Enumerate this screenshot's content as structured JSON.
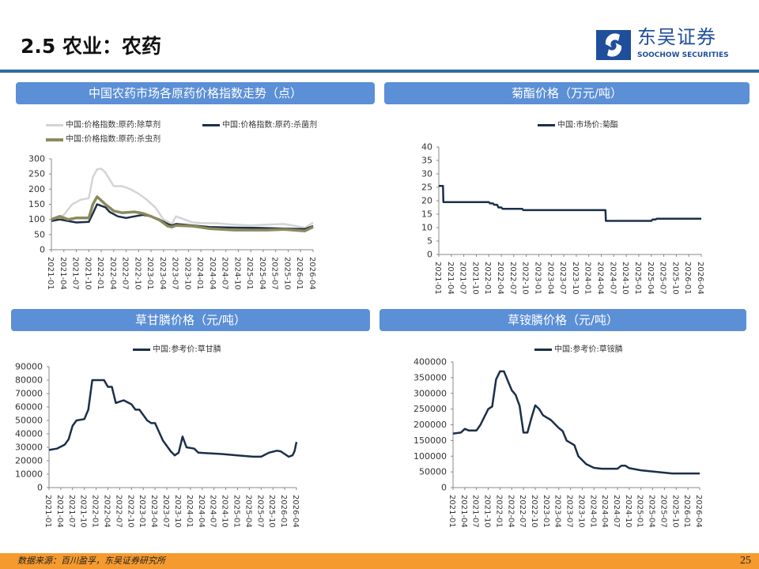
{
  "header": {
    "title": "2.5 农业：农药",
    "logo_cn": "东吴证券",
    "logo_en": "SOOCHOW SECURITIES"
  },
  "footer": {
    "source": "数据来源：百川盈孚，东吴证券研究所",
    "page": "25"
  },
  "colors": {
    "accent": "#5b8fd6",
    "rule": "#2e6e9e",
    "footer": "#f59a2e",
    "navy": "#1b2f4a",
    "gray": "#d4d4d4",
    "olive": "#8c8a5c"
  },
  "chart_data": [
    {
      "type": "line",
      "title": "中国农药市场各原药价格指数走势（点）",
      "ylim": [
        0,
        300
      ],
      "yticks": [
        0,
        50,
        100,
        150,
        200,
        250,
        300
      ],
      "x_unit": "month index from 2021-01",
      "xticks": [
        "2021-01",
        "2021-04",
        "2021-07",
        "2021-10",
        "2022-01",
        "2022-04",
        "2022-07",
        "2022-10",
        "2023-01",
        "2023-04",
        "2023-07",
        "2023-10",
        "2024-01",
        "2024-04",
        "2024-07",
        "2024-10",
        "2025-01",
        "2025-04",
        "2025-07",
        "2025-10",
        "2026-01",
        "2026-04"
      ],
      "legend": "top",
      "series": [
        {
          "name": "中国:价格指数:原药:除草剂",
          "color": "#d4d4d4",
          "points": [
            [
              0,
              95
            ],
            [
              3,
              115
            ],
            [
              5,
              150
            ],
            [
              7,
              165
            ],
            [
              9,
              170
            ],
            [
              10,
              240
            ],
            [
              11,
              265
            ],
            [
              12,
              268
            ],
            [
              13,
              255
            ],
            [
              15,
              210
            ],
            [
              17,
              210
            ],
            [
              19,
              200
            ],
            [
              21,
              185
            ],
            [
              23,
              165
            ],
            [
              25,
              140
            ],
            [
              27,
              100
            ],
            [
              29,
              85
            ],
            [
              30,
              110
            ],
            [
              32,
              100
            ],
            [
              34,
              90
            ],
            [
              36,
              88
            ],
            [
              40,
              87
            ],
            [
              44,
              83
            ],
            [
              48,
              80
            ],
            [
              52,
              83
            ],
            [
              56,
              85
            ],
            [
              59,
              78
            ],
            [
              61,
              72
            ],
            [
              63,
              90
            ]
          ]
        },
        {
          "name": "中国:价格指数:原药:杀菌剂",
          "color": "#1b2f4a",
          "points": [
            [
              0,
              95
            ],
            [
              2,
              100
            ],
            [
              4,
              95
            ],
            [
              6,
              90
            ],
            [
              9,
              92
            ],
            [
              10,
              120
            ],
            [
              11,
              150
            ],
            [
              13,
              140
            ],
            [
              14,
              125
            ],
            [
              16,
              110
            ],
            [
              18,
              105
            ],
            [
              20,
              110
            ],
            [
              22,
              115
            ],
            [
              24,
              110
            ],
            [
              26,
              100
            ],
            [
              28,
              85
            ],
            [
              29,
              80
            ],
            [
              30,
              85
            ],
            [
              34,
              80
            ],
            [
              38,
              75
            ],
            [
              44,
              73
            ],
            [
              50,
              72
            ],
            [
              56,
              70
            ],
            [
              61,
              68
            ],
            [
              63,
              78
            ]
          ]
        },
        {
          "name": "中国:价格指数:原药:杀虫剂",
          "color": "#8c8a5c",
          "points": [
            [
              0,
              100
            ],
            [
              2,
              110
            ],
            [
              4,
              100
            ],
            [
              6,
              105
            ],
            [
              9,
              105
            ],
            [
              10,
              150
            ],
            [
              11,
              175
            ],
            [
              13,
              150
            ],
            [
              15,
              128
            ],
            [
              17,
              122
            ],
            [
              20,
              125
            ],
            [
              22,
              120
            ],
            [
              24,
              110
            ],
            [
              26,
              98
            ],
            [
              28,
              78
            ],
            [
              29,
              75
            ],
            [
              30,
              80
            ],
            [
              34,
              78
            ],
            [
              38,
              70
            ],
            [
              44,
              65
            ],
            [
              52,
              65
            ],
            [
              56,
              67
            ],
            [
              61,
              62
            ],
            [
              63,
              75
            ]
          ]
        }
      ]
    },
    {
      "type": "line",
      "title": "菊酯价格（万元/吨）",
      "ylim": [
        0,
        40
      ],
      "yticks": [
        0,
        5,
        10,
        15,
        20,
        25,
        30,
        35,
        40
      ],
      "xticks": [
        "2021-01",
        "2021-04",
        "2021-07",
        "2021-10",
        "2022-01",
        "2022-04",
        "2022-07",
        "2022-10",
        "2023-01",
        "2023-04",
        "2023-07",
        "2023-10",
        "2024-01",
        "2024-04",
        "2024-07",
        "2024-10",
        "2025-01",
        "2025-04",
        "2025-07",
        "2025-10",
        "2026-01",
        "2026-04"
      ],
      "legend": "top",
      "series": [
        {
          "name": "中国:市场价:菊酯",
          "color": "#1b2f4a",
          "points": [
            [
              0,
              25.5
            ],
            [
              1,
              25.5
            ],
            [
              1.1,
              19.5
            ],
            [
              12,
              19.5
            ],
            [
              12.3,
              19
            ],
            [
              13,
              19
            ],
            [
              13.3,
              18.5
            ],
            [
              14,
              18.5
            ],
            [
              14.3,
              17.5
            ],
            [
              15,
              17.5
            ],
            [
              15.3,
              17
            ],
            [
              20,
              17
            ],
            [
              20.3,
              16.5
            ],
            [
              40,
              16.5
            ],
            [
              40.1,
              12.5
            ],
            [
              51,
              12.5
            ],
            [
              51.3,
              13
            ],
            [
              52,
              13
            ],
            [
              52.3,
              13.3
            ],
            [
              63,
              13.3
            ]
          ]
        }
      ]
    },
    {
      "type": "line",
      "title": "草甘膦价格（元/吨）",
      "ylim": [
        0,
        90000
      ],
      "yticks": [
        0,
        10000,
        20000,
        30000,
        40000,
        50000,
        60000,
        70000,
        80000,
        90000
      ],
      "xticks": [
        "2021-01",
        "2021-04",
        "2021-07",
        "2021-10",
        "2022-01",
        "2022-04",
        "2022-07",
        "2022-10",
        "2023-01",
        "2023-04",
        "2023-07",
        "2023-10",
        "2024-01",
        "2024-04",
        "2024-07",
        "2024-10",
        "2025-01",
        "2025-04",
        "2025-07",
        "2025-10",
        "2026-01",
        "2026-04"
      ],
      "legend": "top",
      "series": [
        {
          "name": "中国:参考价:草甘膦",
          "color": "#1b2f4a",
          "points": [
            [
              0,
              28000
            ],
            [
              2,
              29000
            ],
            [
              4,
              32000
            ],
            [
              5,
              36000
            ],
            [
              6,
              46000
            ],
            [
              7,
              50000
            ],
            [
              9,
              51000
            ],
            [
              10,
              58000
            ],
            [
              11,
              80000
            ],
            [
              14,
              80000
            ],
            [
              15,
              75000
            ],
            [
              16,
              75000
            ],
            [
              17,
              63000
            ],
            [
              18,
              64000
            ],
            [
              19,
              65000
            ],
            [
              21,
              62000
            ],
            [
              22,
              58000
            ],
            [
              23,
              58000
            ],
            [
              25,
              50000
            ],
            [
              26,
              48000
            ],
            [
              27,
              48000
            ],
            [
              29,
              35000
            ],
            [
              31,
              27000
            ],
            [
              32,
              24000
            ],
            [
              33,
              26000
            ],
            [
              34,
              38000
            ],
            [
              35,
              30000
            ],
            [
              37,
              29000
            ],
            [
              38,
              26000
            ],
            [
              44,
              25000
            ],
            [
              48,
              24000
            ],
            [
              52,
              23000
            ],
            [
              54,
              23000
            ],
            [
              56,
              26000
            ],
            [
              58,
              27500
            ],
            [
              59,
              27000
            ],
            [
              61,
              23000
            ],
            [
              62,
              24000
            ],
            [
              62.5,
              27000
            ],
            [
              63,
              34000
            ]
          ]
        }
      ]
    },
    {
      "type": "line",
      "title": "草铵膦价格（元/吨）",
      "ylim": [
        0,
        400000
      ],
      "yticks": [
        0,
        50000,
        100000,
        150000,
        200000,
        250000,
        300000,
        350000,
        400000
      ],
      "xticks": [
        "2021-01",
        "2021-04",
        "2021-07",
        "2021-10",
        "2022-01",
        "2022-04",
        "2022-07",
        "2022-10",
        "2023-01",
        "2023-04",
        "2023-07",
        "2023-10",
        "2024-01",
        "2024-04",
        "2024-07",
        "2024-10",
        "2025-01",
        "2025-04",
        "2025-07",
        "2025-10",
        "2026-01",
        "2026-04"
      ],
      "legend": "top",
      "series": [
        {
          "name": "中国:参考价:草铵膦",
          "color": "#1b2f4a",
          "points": [
            [
              0,
              172000
            ],
            [
              2,
              175000
            ],
            [
              3,
              187000
            ],
            [
              4,
              182000
            ],
            [
              6,
              182000
            ],
            [
              7,
              200000
            ],
            [
              8,
              225000
            ],
            [
              9,
              250000
            ],
            [
              10,
              258000
            ],
            [
              11,
              345000
            ],
            [
              12,
              370000
            ],
            [
              13,
              370000
            ],
            [
              14,
              340000
            ],
            [
              15,
              310000
            ],
            [
              16,
              295000
            ],
            [
              17,
              260000
            ],
            [
              18,
              175000
            ],
            [
              19,
              175000
            ],
            [
              20,
              220000
            ],
            [
              21,
              262000
            ],
            [
              22,
              250000
            ],
            [
              23,
              230000
            ],
            [
              25,
              215000
            ],
            [
              27,
              190000
            ],
            [
              28,
              180000
            ],
            [
              29,
              150000
            ],
            [
              31,
              135000
            ],
            [
              32,
              100000
            ],
            [
              34,
              75000
            ],
            [
              36,
              63000
            ],
            [
              38,
              60000
            ],
            [
              42,
              60000
            ],
            [
              43,
              70000
            ],
            [
              44,
              70000
            ],
            [
              45,
              62000
            ],
            [
              48,
              55000
            ],
            [
              52,
              50000
            ],
            [
              56,
              45000
            ],
            [
              62,
              45000
            ],
            [
              63,
              45000
            ]
          ]
        }
      ]
    }
  ]
}
